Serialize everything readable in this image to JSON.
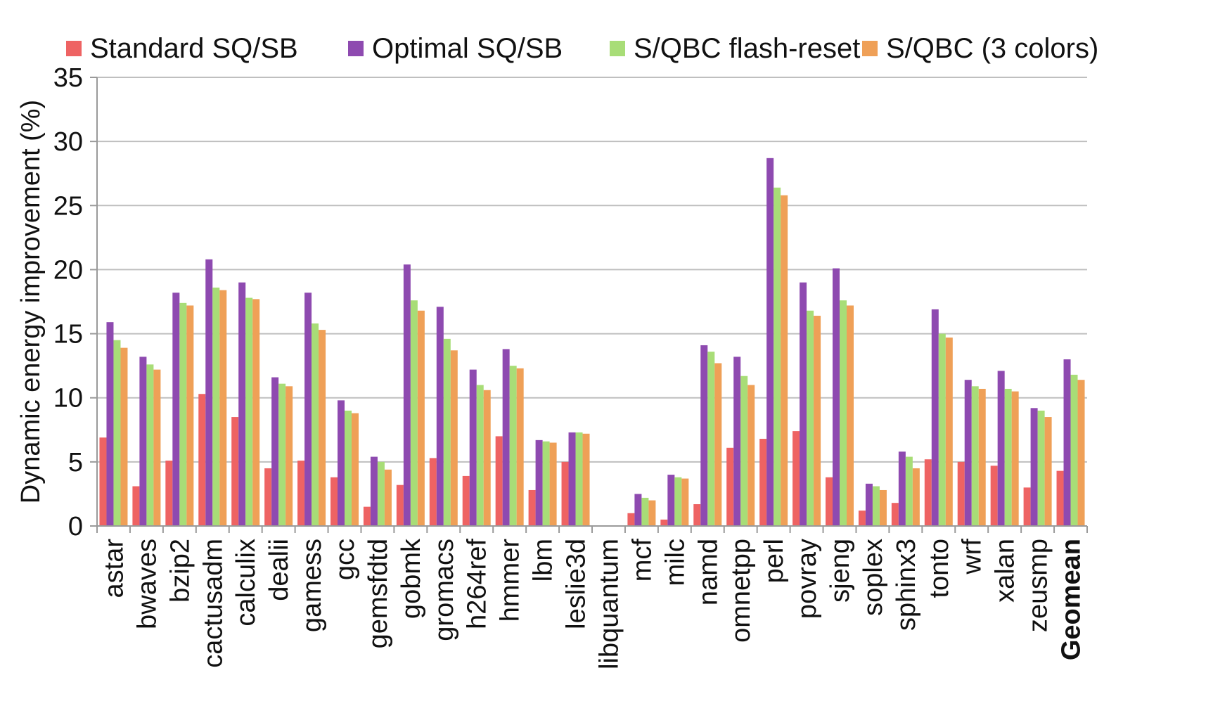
{
  "chart_data": {
    "type": "bar",
    "title": "",
    "xlabel": "",
    "ylabel": "Dynamic energy improvement (%)",
    "ylim": [
      0,
      35
    ],
    "yticks": [
      0,
      5,
      10,
      15,
      20,
      25,
      30,
      35
    ],
    "grid": true,
    "legend_position": "top",
    "categories": [
      "astar",
      "bwaves",
      "bzip2",
      "cactusadm",
      "calculix",
      "dealii",
      "gamess",
      "gcc",
      "gemsfdtd",
      "gobmk",
      "gromacs",
      "h264ref",
      "hmmer",
      "lbm",
      "leslie3d",
      "libquantum",
      "mcf",
      "milc",
      "namd",
      "omnetpp",
      "perl",
      "povray",
      "sjeng",
      "soplex",
      "sphinx3",
      "tonto",
      "wrf",
      "xalan",
      "zeusmp",
      "Geomean"
    ],
    "bold_categories": [
      "Geomean"
    ],
    "series": [
      {
        "name": "Standard SQ/SB",
        "color": "#EE6363",
        "values": [
          6.9,
          3.1,
          5.1,
          10.3,
          8.5,
          4.5,
          5.1,
          3.8,
          1.5,
          3.2,
          5.3,
          3.9,
          7.0,
          2.8,
          5.0,
          0.0,
          1.0,
          0.5,
          1.7,
          6.1,
          6.8,
          7.4,
          3.8,
          1.2,
          1.8,
          5.2,
          5.0,
          4.7,
          3.0,
          4.3
        ]
      },
      {
        "name": "Optimal SQ/SB",
        "color": "#8E4AB0",
        "values": [
          15.9,
          13.2,
          18.2,
          20.8,
          19.0,
          11.6,
          18.2,
          9.8,
          5.4,
          20.4,
          17.1,
          12.2,
          13.8,
          6.7,
          7.3,
          0.0,
          2.5,
          4.0,
          14.1,
          13.2,
          28.7,
          19.0,
          20.1,
          3.3,
          5.8,
          16.9,
          11.4,
          12.1,
          9.2,
          13.0
        ]
      },
      {
        "name": "S/QBC flash-reset",
        "color": "#A8DD77",
        "values": [
          14.5,
          12.6,
          17.4,
          18.6,
          17.8,
          11.1,
          15.8,
          9.0,
          5.0,
          17.6,
          14.6,
          11.0,
          12.5,
          6.6,
          7.3,
          0.0,
          2.2,
          3.8,
          13.6,
          11.7,
          26.4,
          16.8,
          17.6,
          3.1,
          5.4,
          15.0,
          10.9,
          10.7,
          9.0,
          11.8
        ]
      },
      {
        "name": "S/QBC (3 colors)",
        "color": "#EFA057",
        "values": [
          13.9,
          12.2,
          17.2,
          18.4,
          17.7,
          10.9,
          15.3,
          8.8,
          4.4,
          16.8,
          13.7,
          10.6,
          12.3,
          6.5,
          7.2,
          0.0,
          2.0,
          3.7,
          12.7,
          11.0,
          25.8,
          16.4,
          17.2,
          2.8,
          4.5,
          14.7,
          10.7,
          10.5,
          8.5,
          11.4
        ]
      }
    ]
  }
}
